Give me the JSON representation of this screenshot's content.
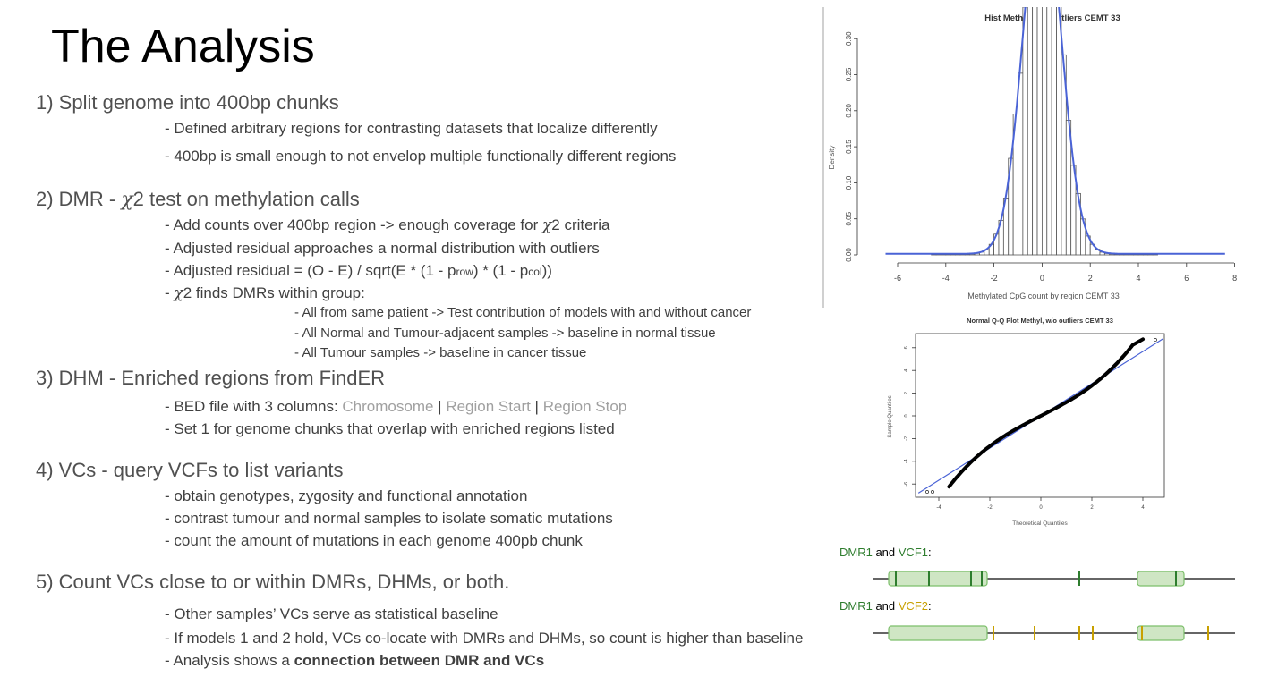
{
  "title": "The Analysis",
  "sections": {
    "s1": {
      "heading": "1) Split genome into 400bp chunks",
      "bullets": [
        "- Defined arbitrary regions for contrasting datasets that localize differently",
        "- 400bp is small enough to not envelop multiple functionally different regions"
      ]
    },
    "s2": {
      "heading_pre": "2) DMR - ",
      "chi": "χ",
      "heading_post": "2 test on methylation calls",
      "b1_pre": "- Add counts over 400bp region -> enough coverage for ",
      "b1_post": "2 criteria",
      "b2": "- Adjusted residual approaches a normal distribution with outliers",
      "b3_pre": "- Adjusted residual = (O - E) / sqrt(E * (1 - p",
      "b3_row": "row",
      "b3_mid": ") * (1 - p",
      "b3_col": "col",
      "b3_end": "))",
      "b4_pre": "- ",
      "b4_post": "2 finds DMRs within group:",
      "sub": [
        "- All from same patient -> Test contribution of models with and without cancer",
        "- All Normal and Tumour-adjacent samples -> baseline in normal tissue",
        "- All Tumour samples -> baseline in cancer tissue"
      ]
    },
    "s3": {
      "heading": "3) DHM - Enriched regions from FindER",
      "b1_pre": "- BED file with 3 columns:  ",
      "col1": "Chromosome",
      "sep": " | ",
      "col2": "Region Start",
      "col3": "Region Stop",
      "b2": "- Set 1 for genome chunks that overlap with enriched regions listed"
    },
    "s4": {
      "heading": "4) VCs - query VCFs to list variants",
      "bullets": [
        "- obtain genotypes, zygosity and functional annotation",
        "- contrast tumour and normal samples to isolate somatic mutations",
        "- count the amount of mutations in each genome 400pb chunk"
      ]
    },
    "s5": {
      "heading": "5) Count VCs close to or within DMRs, DHMs, or both.",
      "b1": "- Other samples’ VCs serve as statistical baseline",
      "b2": "- If models 1 and 2 hold, VCs co-locate with DMRs and DHMs, so count is higher than baseline",
      "b3_pre": "- Analysis shows a ",
      "b3_bold": "connection between DMR and VCs"
    }
  },
  "histogram": {
    "title": "Hist Methyl, w/o outliers CEMT 33",
    "xlabel": "Methylated CpG count by region CEMT 33",
    "ylabel": "Density",
    "xticks": [
      "-6",
      "-4",
      "-2",
      "0",
      "2",
      "4",
      "6",
      "8"
    ],
    "yticks": [
      "0.00",
      "0.05",
      "0.10",
      "0.15",
      "0.20",
      "0.25",
      "0.30"
    ],
    "curve_color": "#4a63d6"
  },
  "qqplot": {
    "title": "Normal Q-Q Plot Methyl, w/o outliers CEMT 33",
    "xlabel": "Theoretical Quantiles",
    "ylabel": "Sample Quantiles",
    "xticks": [
      "-4",
      "-2",
      "0",
      "2",
      "4"
    ],
    "yticks": [
      "-6",
      "-4",
      "-2",
      "0",
      "2",
      "4",
      "6"
    ],
    "line_color": "#4a63d6"
  },
  "legend1": {
    "dmr": "DMR1",
    "and": " and ",
    "vcf": "VCF1",
    "colon": ":",
    "dmr_color": "#2e7d2e",
    "vcf_color": "#2e7d2e"
  },
  "legend2": {
    "dmr": "DMR1",
    "and": " and ",
    "vcf": "VCF2",
    "colon": ":",
    "dmr_color": "#2e7d2e",
    "vcf_color": "#c8a000"
  },
  "track_colors": {
    "region_fill": "#cfe6c4",
    "region_stroke": "#7cbf6a",
    "vcf1_tick": "#2e7d2e",
    "vcf2_tick": "#c8a000"
  }
}
